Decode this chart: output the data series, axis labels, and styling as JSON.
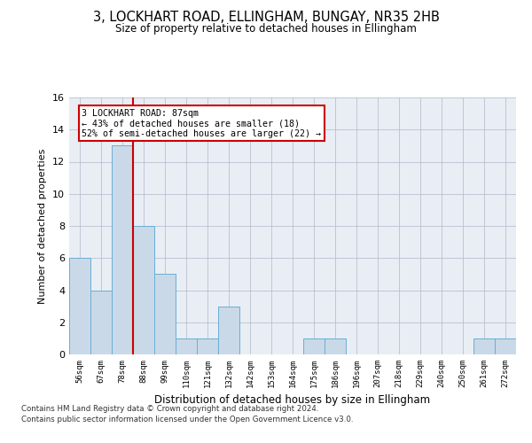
{
  "title": "3, LOCKHART ROAD, ELLINGHAM, BUNGAY, NR35 2HB",
  "subtitle": "Size of property relative to detached houses in Ellingham",
  "xlabel": "Distribution of detached houses by size in Ellingham",
  "ylabel": "Number of detached properties",
  "categories": [
    "56sqm",
    "67sqm",
    "78sqm",
    "88sqm",
    "99sqm",
    "110sqm",
    "121sqm",
    "132sqm",
    "142sqm",
    "153sqm",
    "164sqm",
    "175sqm",
    "186sqm",
    "196sqm",
    "207sqm",
    "218sqm",
    "229sqm",
    "240sqm",
    "250sqm",
    "261sqm",
    "272sqm"
  ],
  "values": [
    6,
    4,
    13,
    8,
    5,
    1,
    1,
    3,
    0,
    0,
    0,
    1,
    1,
    0,
    0,
    0,
    0,
    0,
    0,
    1,
    1
  ],
  "bar_color": "#c9d9e8",
  "bar_edgecolor": "#6baed6",
  "vline_color": "#cc0000",
  "annotation_text": "3 LOCKHART ROAD: 87sqm\n← 43% of detached houses are smaller (18)\n52% of semi-detached houses are larger (22) →",
  "annotation_box_color": "#ffffff",
  "annotation_box_edgecolor": "#cc0000",
  "ylim": [
    0,
    16
  ],
  "yticks": [
    0,
    2,
    4,
    6,
    8,
    10,
    12,
    14,
    16
  ],
  "background_color": "#e8eef4",
  "footer1": "Contains HM Land Registry data © Crown copyright and database right 2024.",
  "footer2": "Contains public sector information licensed under the Open Government Licence v3.0."
}
